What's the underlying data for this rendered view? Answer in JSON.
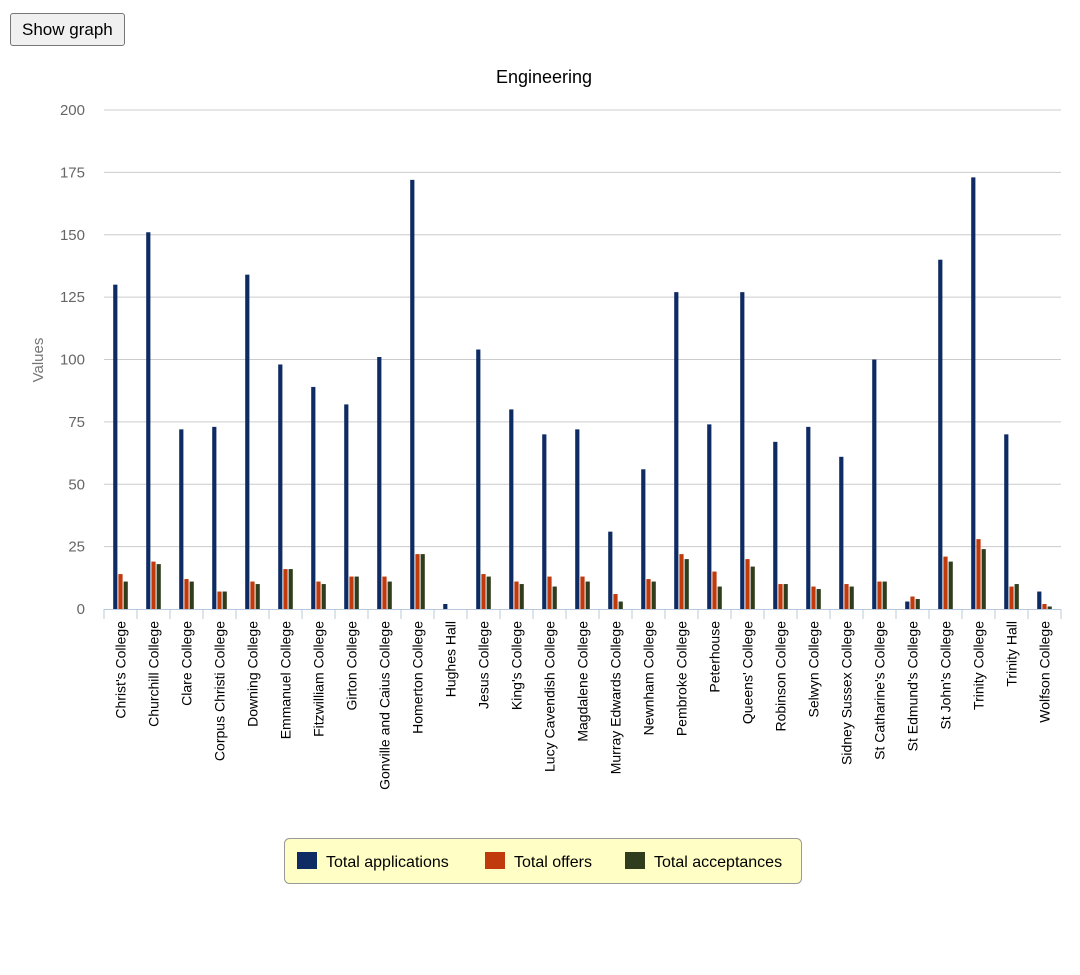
{
  "toolbar": {
    "show_graph_label": "Show graph"
  },
  "chart_data": {
    "type": "bar",
    "title": "Engineering",
    "xlabel": "",
    "ylabel": "Values",
    "ylim": [
      0,
      200
    ],
    "yticks": [
      0,
      25,
      50,
      75,
      100,
      125,
      150,
      175,
      200
    ],
    "grid": true,
    "legend_position": "bottom",
    "categories": [
      "Christ's College",
      "Churchill College",
      "Clare College",
      "Corpus Christi College",
      "Downing College",
      "Emmanuel College",
      "Fitzwilliam College",
      "Girton College",
      "Gonville and Caius College",
      "Homerton College",
      "Hughes Hall",
      "Jesus College",
      "King's College",
      "Lucy Cavendish College",
      "Magdalene College",
      "Murray Edwards College",
      "Newnham College",
      "Pembroke College",
      "Peterhouse",
      "Queens' College",
      "Robinson College",
      "Selwyn College",
      "Sidney Sussex College",
      "St Catharine's College",
      "St Edmund's College",
      "St John's College",
      "Trinity College",
      "Trinity Hall",
      "Wolfson College"
    ],
    "series": [
      {
        "name": "Total applications",
        "color": "#0f2b63",
        "values": [
          130,
          151,
          72,
          73,
          134,
          98,
          89,
          82,
          101,
          172,
          2,
          104,
          80,
          70,
          72,
          31,
          56,
          127,
          74,
          127,
          67,
          73,
          61,
          100,
          3,
          140,
          173,
          70,
          7
        ]
      },
      {
        "name": "Total offers",
        "color": "#c13a0c",
        "values": [
          14,
          19,
          12,
          7,
          11,
          16,
          11,
          13,
          13,
          22,
          0,
          14,
          11,
          13,
          13,
          6,
          12,
          22,
          15,
          20,
          10,
          9,
          10,
          11,
          5,
          21,
          28,
          9,
          2
        ]
      },
      {
        "name": "Total acceptances",
        "color": "#2f3d1c",
        "values": [
          11,
          18,
          11,
          7,
          10,
          16,
          10,
          13,
          11,
          22,
          0,
          13,
          10,
          9,
          11,
          3,
          11,
          20,
          9,
          17,
          10,
          8,
          9,
          11,
          4,
          19,
          24,
          10,
          1
        ]
      }
    ]
  }
}
